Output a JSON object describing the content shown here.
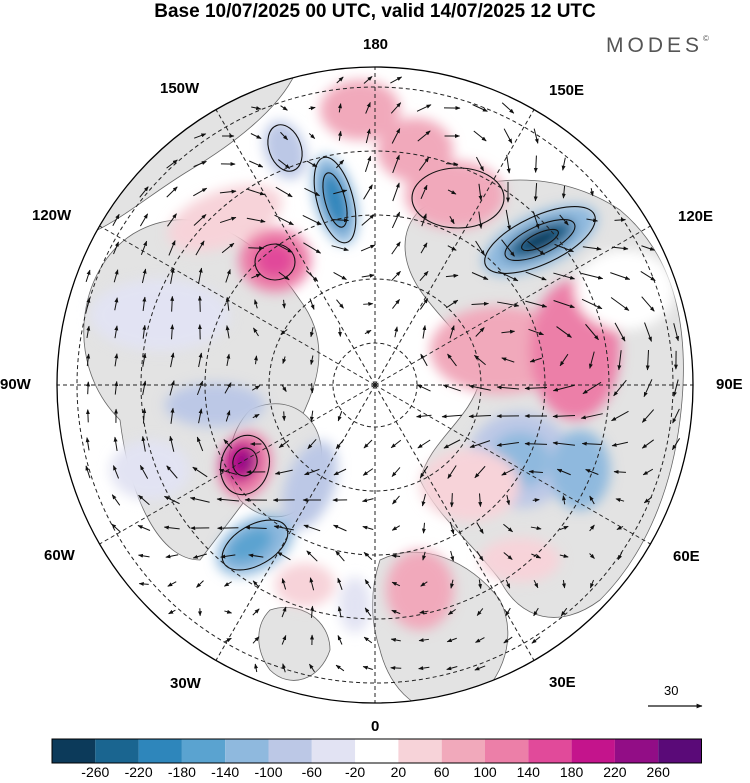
{
  "title": "Base 10/07/2025 00 UTC, valid 14/07/2025 12 UTC",
  "brand": "MODES",
  "brand_mark": "©",
  "longitude_labels": {
    "top": "180",
    "bottom": "0",
    "left": "90W",
    "right": "90E",
    "upper_left": "150W",
    "upper_right": "150E",
    "mid_upper_left": "120W",
    "mid_upper_right": "120E",
    "mid_lower_left": "60W",
    "mid_lower_right": "60E",
    "lower_left": "30W",
    "lower_right": "30E"
  },
  "vector_reference": {
    "value": "30"
  },
  "colorbar": {
    "colors": [
      "#0c3a5a",
      "#1a6590",
      "#2e86bb",
      "#5aa3d0",
      "#8fb9de",
      "#bcc8e6",
      "#e2e3f3",
      "#ffffff",
      "#f7d3d9",
      "#f1a9bb",
      "#ec7fa8",
      "#e14a9a",
      "#c4148c",
      "#920d86",
      "#5a0a78"
    ],
    "labels": [
      "-260",
      "-220",
      "-180",
      "-140",
      "-100",
      "-60",
      "-20",
      "20",
      "60",
      "100",
      "140",
      "180",
      "220",
      "260"
    ]
  },
  "map_colors": {
    "land": "#e3e3e3",
    "ocean": "#ffffff",
    "coast": "#666666",
    "grid": "#222222",
    "vectors": "#111111"
  }
}
